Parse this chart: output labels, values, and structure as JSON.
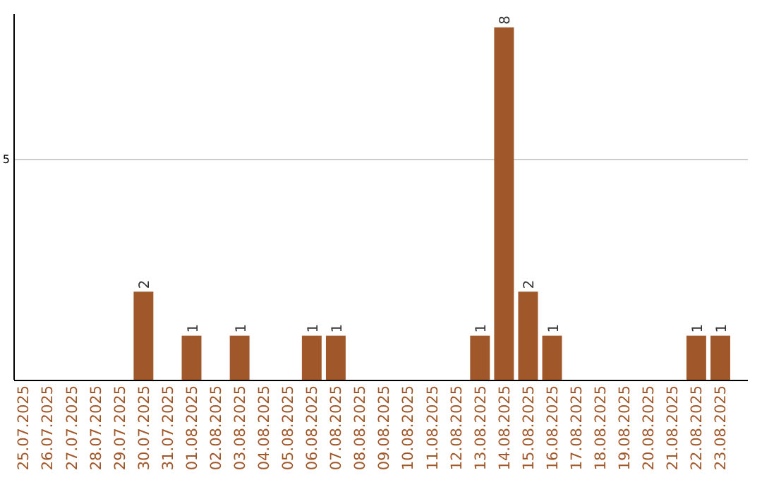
{
  "chart_data": {
    "type": "bar",
    "categories": [
      "25.07.2025",
      "26.07.2025",
      "27.07.2025",
      "28.07.2025",
      "29.07.2025",
      "30.07.2025",
      "31.07.2025",
      "01.08.2025",
      "02.08.2025",
      "03.08.2025",
      "04.08.2025",
      "05.08.2025",
      "06.08.2025",
      "07.08.2025",
      "08.08.2025",
      "09.08.2025",
      "10.08.2025",
      "11.08.2025",
      "12.08.2025",
      "13.08.2025",
      "14.08.2025",
      "15.08.2025",
      "16.08.2025",
      "17.08.2025",
      "18.08.2025",
      "19.08.2025",
      "20.08.2025",
      "21.08.2025",
      "22.08.2025",
      "23.08.2025"
    ],
    "values": [
      0,
      0,
      0,
      0,
      0,
      2,
      0,
      1,
      0,
      1,
      0,
      0,
      1,
      1,
      0,
      0,
      0,
      0,
      0,
      1,
      8,
      2,
      1,
      0,
      0,
      0,
      0,
      0,
      1,
      1
    ],
    "value_labels": [
      null,
      null,
      null,
      null,
      null,
      "2",
      null,
      "1",
      null,
      "1",
      null,
      null,
      "1",
      "1",
      null,
      null,
      null,
      null,
      null,
      "1",
      "8",
      "2",
      "1",
      null,
      null,
      null,
      null,
      null,
      "1",
      "1"
    ],
    "color": "#a0572a",
    "ylim": [
      0,
      8.3
    ],
    "yticks": [
      5
    ],
    "grid": "y"
  }
}
